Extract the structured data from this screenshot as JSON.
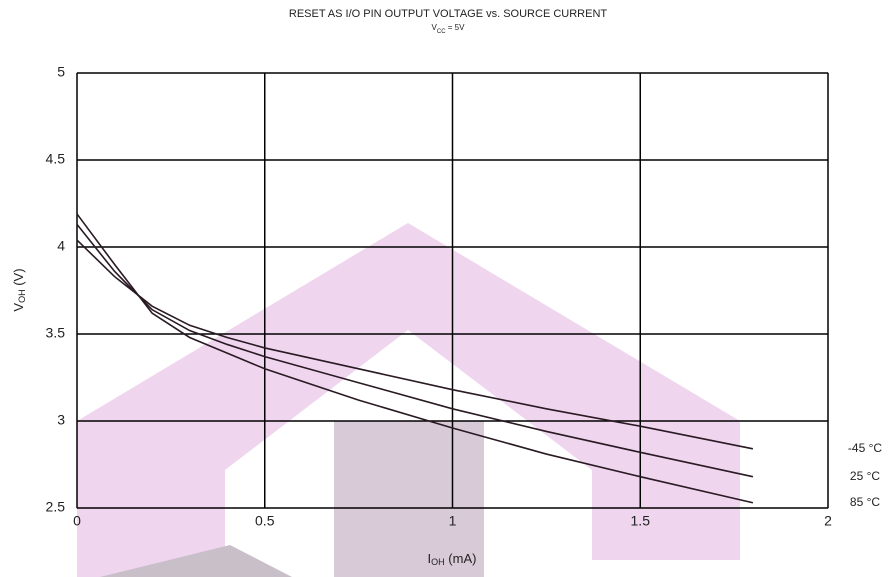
{
  "chart_data": {
    "type": "line",
    "title": "RESET AS I/O PIN OUTPUT VOLTAGE vs. SOURCE CURRENT",
    "subtitle": [
      "V",
      "CC",
      " = 5V"
    ],
    "x_label": [
      "I",
      "OH",
      " (mA)"
    ],
    "y_label": [
      "V",
      "OH",
      " (V)"
    ],
    "x": [
      0,
      0.1,
      0.2,
      0.3,
      0.4,
      0.5,
      0.75,
      1,
      1.25,
      1.5,
      1.8
    ],
    "series": [
      {
        "name": "-45 °C",
        "color": "#2a1a24",
        "values": [
          4.04,
          3.83,
          3.66,
          3.55,
          3.48,
          3.42,
          3.3,
          3.18,
          3.07,
          2.97,
          2.84
        ]
      },
      {
        "name": "25 °C",
        "color": "#2a1a24",
        "values": [
          4.13,
          3.86,
          3.64,
          3.52,
          3.44,
          3.37,
          3.22,
          3.07,
          2.94,
          2.82,
          2.68
        ]
      },
      {
        "name": "85 °C",
        "color": "#2a1a24",
        "values": [
          4.19,
          3.9,
          3.62,
          3.48,
          3.39,
          3.3,
          3.12,
          2.96,
          2.81,
          2.68,
          2.53
        ]
      }
    ],
    "xlim": [
      0,
      2
    ],
    "xticks": [
      0,
      0.5,
      1,
      1.5,
      2
    ],
    "ylim": [
      2.5,
      5
    ],
    "yticks": [
      2.5,
      3,
      3.5,
      4,
      4.5,
      5
    ],
    "grid": true
  }
}
